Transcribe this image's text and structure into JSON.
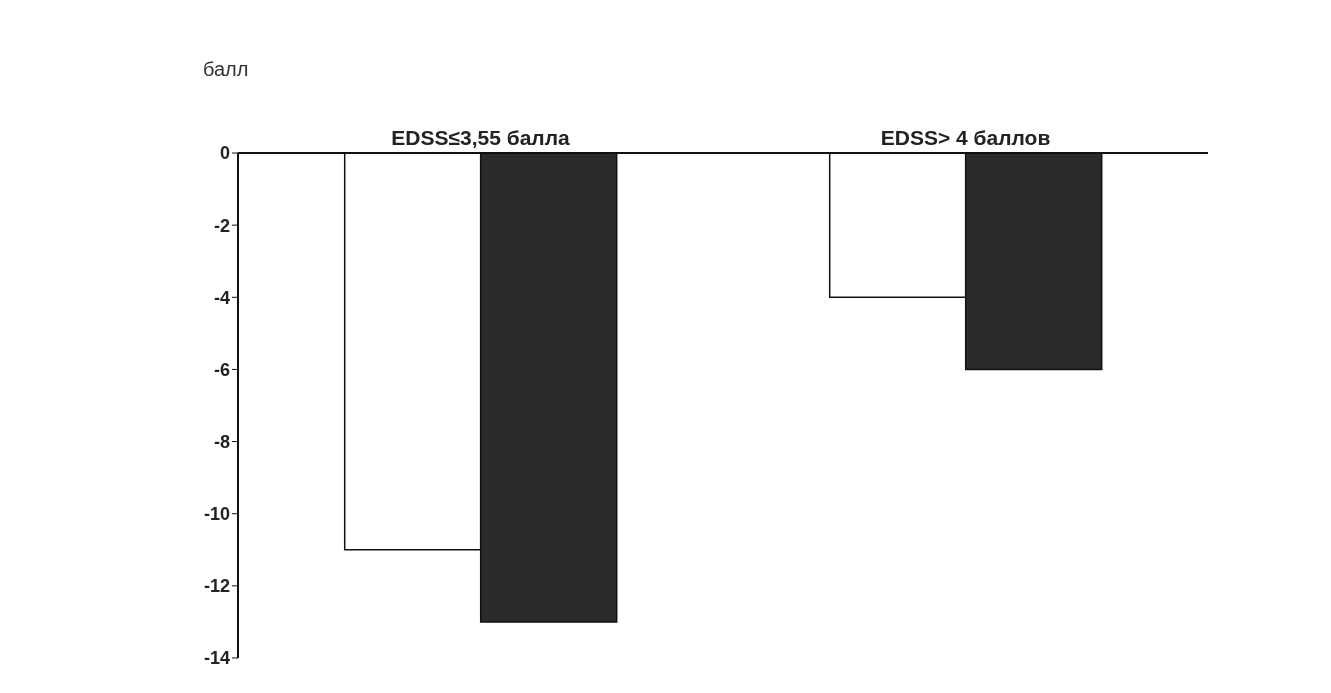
{
  "chart_data": {
    "type": "bar",
    "ylabel": "балл",
    "categories": [
      "EDSS≤3,55 балла",
      "EDSS> 4 баллов"
    ],
    "series": [
      {
        "color": "#ffffff",
        "values": [
          -11,
          -4
        ]
      },
      {
        "color": "#2b2b2b",
        "values": [
          -13,
          -6
        ]
      }
    ],
    "ylim": [
      -14,
      0
    ],
    "yticks": [
      -14,
      -12,
      -10,
      -8,
      -6,
      -4,
      -2,
      0
    ],
    "grid": false,
    "legend": false
  }
}
